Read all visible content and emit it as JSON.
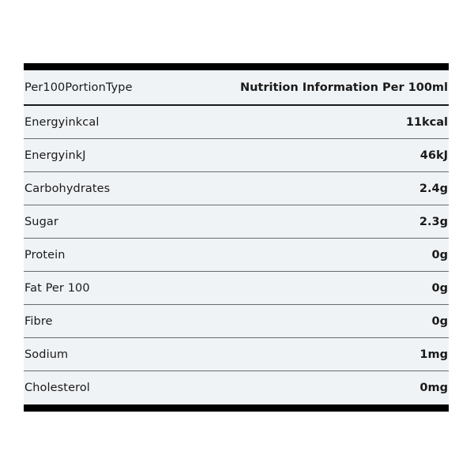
{
  "header": {
    "label": "Per100PortionType",
    "value": "Nutrition Information Per 100ml"
  },
  "rows": [
    {
      "label": "Energyinkcal",
      "value": "11kcal"
    },
    {
      "label": "EnergyinkJ",
      "value": "46kJ"
    },
    {
      "label": "Carbohydrates",
      "value": "2.4g"
    },
    {
      "label": "Sugar",
      "value": "2.3g"
    },
    {
      "label": "Protein",
      "value": "0g"
    },
    {
      "label": "Fat Per 100",
      "value": "0g"
    },
    {
      "label": "Fibre",
      "value": "0g"
    },
    {
      "label": "Sodium",
      "value": "1mg"
    },
    {
      "label": "Cholesterol",
      "value": "0mg"
    }
  ]
}
